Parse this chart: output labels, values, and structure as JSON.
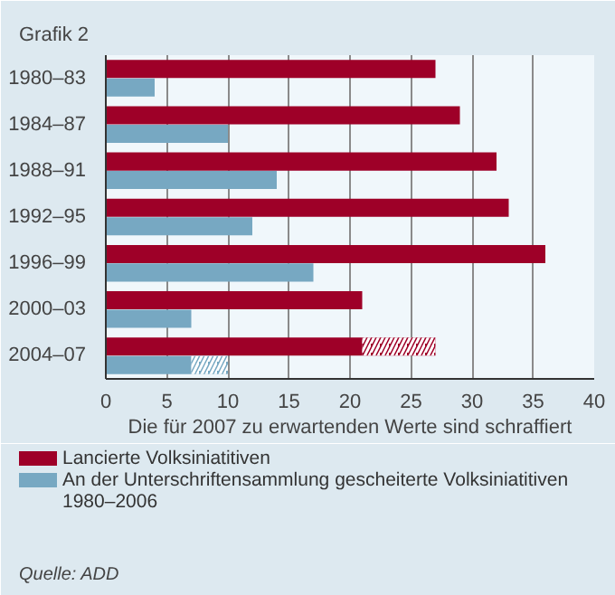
{
  "chart_data": {
    "type": "bar",
    "orientation": "horizontal",
    "title": "Grafik 2",
    "xlabel": "Die für 2007 zu erwartenden Werte sind schraffiert",
    "categories": [
      "1980–83",
      "1984–87",
      "1988–91",
      "1992–95",
      "1996–99",
      "2000–03",
      "2004–07"
    ],
    "series": [
      {
        "name": "Lancierte Volksiniatitiven",
        "color": "#9e0028",
        "values": [
          27,
          29,
          32,
          33,
          36,
          21,
          21
        ]
      },
      {
        "color": "#9e0028",
        "values": [
          null,
          null,
          null,
          null,
          null,
          null,
          6
        ],
        "base": [
          null,
          null,
          null,
          null,
          null,
          null,
          21
        ]
      },
      {
        "name": "An der Unterschriftensammlung gescheiterte Volksiniatitiven\n1980–2006",
        "color": "#77a8c2",
        "values": [
          4,
          10,
          14,
          12,
          17,
          7,
          7
        ]
      },
      {
        "color": "#77a8c2",
        "values": [
          null,
          null,
          null,
          null,
          null,
          null,
          3
        ],
        "base": [
          null,
          null,
          null,
          null,
          null,
          null,
          7
        ]
      }
    ],
    "xlim": [
      0,
      40
    ],
    "xticks": [
      0,
      5,
      10,
      15,
      20,
      25,
      30,
      35,
      40
    ],
    "grid": "x",
    "legend": "bottom",
    "annotations": [
      "Quelle: ADD"
    ]
  }
}
